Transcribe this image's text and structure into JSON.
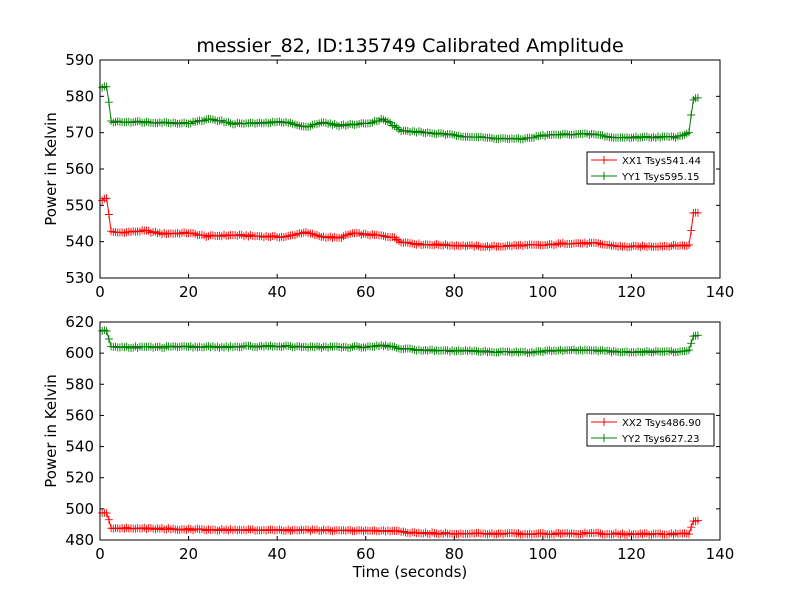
{
  "chart_data": [
    {
      "type": "line",
      "title": "messier_82, ID:135749 Calibrated Amplitude",
      "xlabel": "",
      "ylabel": "Power in Kelvin",
      "xlim": [
        0,
        140
      ],
      "ylim": [
        530,
        590
      ],
      "xticks": [
        "0",
        "20",
        "40",
        "60",
        "80",
        "100",
        "120",
        "140"
      ],
      "yticks": [
        "530",
        "540",
        "550",
        "560",
        "570",
        "580",
        "590"
      ],
      "legend_position": "center-right",
      "series": [
        {
          "name": "XX1 Tsys541.44",
          "color": "#ff0000",
          "marker": "plus",
          "points": [
            [
              0.5,
              551.5
            ],
            [
              1,
              551.7
            ],
            [
              1.5,
              551.9
            ],
            [
              2,
              547.5
            ],
            [
              2.5,
              543
            ],
            [
              3,
              542.5
            ],
            [
              6,
              542.6
            ],
            [
              10,
              543
            ],
            [
              14,
              542.2
            ],
            [
              20,
              542.4
            ],
            [
              24,
              541.5
            ],
            [
              30,
              541.8
            ],
            [
              36,
              541.5
            ],
            [
              42,
              541.3
            ],
            [
              46,
              542.6
            ],
            [
              50,
              541.4
            ],
            [
              54,
              541
            ],
            [
              57,
              542.3
            ],
            [
              62,
              541.8
            ],
            [
              66,
              541.3
            ],
            [
              68,
              540
            ],
            [
              72,
              539.3
            ],
            [
              80,
              539
            ],
            [
              88,
              538.6
            ],
            [
              95,
              539
            ],
            [
              100,
              539
            ],
            [
              106,
              539.6
            ],
            [
              112,
              539.5
            ],
            [
              118,
              538.6
            ],
            [
              124,
              538.7
            ],
            [
              130,
              538.9
            ],
            [
              133,
              539
            ],
            [
              133.5,
              543
            ],
            [
              134,
              548
            ],
            [
              135,
              548
            ]
          ]
        },
        {
          "name": "YY1 Tsys595.15",
          "color": "#008000",
          "marker": "plus",
          "points": [
            [
              0.5,
              582.5
            ],
            [
              1,
              582.8
            ],
            [
              1.5,
              582.6
            ],
            [
              2,
              578.5
            ],
            [
              2.5,
              573
            ],
            [
              3,
              573
            ],
            [
              8,
              573
            ],
            [
              14,
              572.8
            ],
            [
              20,
              572.6
            ],
            [
              25,
              573.8
            ],
            [
              30,
              572.5
            ],
            [
              36,
              572.6
            ],
            [
              42,
              573
            ],
            [
              46,
              571.5
            ],
            [
              50,
              572.8
            ],
            [
              54,
              572
            ],
            [
              60,
              572.5
            ],
            [
              64,
              573.8
            ],
            [
              68,
              570.5
            ],
            [
              72,
              570.2
            ],
            [
              80,
              569.3
            ],
            [
              88,
              568.5
            ],
            [
              95,
              568.2
            ],
            [
              100,
              569.2
            ],
            [
              106,
              569.6
            ],
            [
              112,
              569.5
            ],
            [
              116,
              568.6
            ],
            [
              124,
              568.8
            ],
            [
              130,
              568.8
            ],
            [
              133,
              570
            ],
            [
              133.5,
              575
            ],
            [
              134,
              579.2
            ],
            [
              135,
              579.5
            ]
          ]
        }
      ]
    },
    {
      "type": "line",
      "title": "",
      "xlabel": "Time (seconds)",
      "ylabel": "Power in Kelvin",
      "xlim": [
        0,
        140
      ],
      "ylim": [
        480,
        620
      ],
      "xticks": [
        "0",
        "20",
        "40",
        "60",
        "80",
        "100",
        "120",
        "140"
      ],
      "yticks": [
        "480",
        "500",
        "520",
        "540",
        "560",
        "580",
        "600",
        "620"
      ],
      "legend_position": "center-right",
      "series": [
        {
          "name": "XX2 Tsys486.90",
          "color": "#ff0000",
          "marker": "plus",
          "points": [
            [
              0.5,
              497
            ],
            [
              1,
              497.5
            ],
            [
              1.5,
              497
            ],
            [
              2,
              493
            ],
            [
              2.5,
              488
            ],
            [
              3,
              487.5
            ],
            [
              10,
              487.5
            ],
            [
              20,
              486.8
            ],
            [
              30,
              486.5
            ],
            [
              40,
              486.3
            ],
            [
              50,
              486.2
            ],
            [
              60,
              486
            ],
            [
              68,
              485.6
            ],
            [
              70,
              484.5
            ],
            [
              80,
              484.2
            ],
            [
              90,
              484
            ],
            [
              100,
              484
            ],
            [
              110,
              484.2
            ],
            [
              120,
              483.8
            ],
            [
              130,
              483.8
            ],
            [
              133,
              484
            ],
            [
              133.5,
              488
            ],
            [
              134,
              492.5
            ],
            [
              135,
              492.6
            ]
          ]
        },
        {
          "name": "YY2 Tsys627.23",
          "color": "#008000",
          "marker": "plus",
          "points": [
            [
              0.5,
              614
            ],
            [
              1,
              614.3
            ],
            [
              1.5,
              613.8
            ],
            [
              2,
              609
            ],
            [
              2.5,
              604.5
            ],
            [
              3,
              604
            ],
            [
              10,
              603.8
            ],
            [
              20,
              604
            ],
            [
              30,
              604
            ],
            [
              40,
              604.5
            ],
            [
              50,
              603.8
            ],
            [
              60,
              604
            ],
            [
              64,
              605
            ],
            [
              68,
              603
            ],
            [
              72,
              602
            ],
            [
              80,
              601.5
            ],
            [
              88,
              601
            ],
            [
              98,
              600.5
            ],
            [
              102,
              601.5
            ],
            [
              110,
              602
            ],
            [
              118,
              600.8
            ],
            [
              126,
              601
            ],
            [
              132,
              601
            ],
            [
              133,
              602
            ],
            [
              133.5,
              606
            ],
            [
              134,
              611
            ],
            [
              135,
              611.3
            ]
          ]
        }
      ]
    }
  ]
}
